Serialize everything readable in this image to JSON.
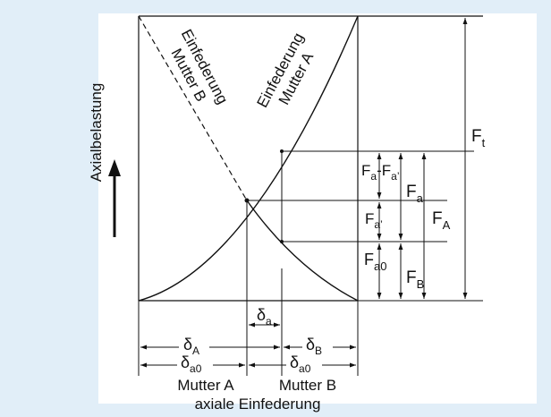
{
  "colors": {
    "background": "#e1eef8",
    "plot_area": "#ffffff",
    "ink": "#111111"
  },
  "y_axis_label": "Axialbelastung",
  "curves": {
    "nut_b_line1": "Einfederung",
    "nut_b_line2": "Mutter B",
    "nut_a_line1": "Einfederung",
    "nut_a_line2": "Mutter A"
  },
  "forces": {
    "Ft": {
      "base": "F",
      "sub": "t"
    },
    "Fa_minus": {
      "base1": "F",
      "sub1": "a",
      "dash": "-",
      "base2": "F",
      "sub2": "a’"
    },
    "Fa": {
      "base": "F",
      "sub": "a"
    },
    "Fa_prime": {
      "base": "F",
      "sub": "a’"
    },
    "FA": {
      "base": "F",
      "sub": "A"
    },
    "Fa0": {
      "base": "F",
      "sub": "a0"
    },
    "FB": {
      "base": "F",
      "sub": "B"
    }
  },
  "deflections": {
    "delta_a": {
      "base": "δ",
      "sub": "a"
    },
    "delta_A": {
      "base": "δ",
      "sub": "A"
    },
    "delta_B": {
      "base": "δ",
      "sub": "B"
    },
    "delta_a0_left": {
      "base": "δ",
      "sub": "a0"
    },
    "delta_a0_right": {
      "base": "δ",
      "sub": "a0"
    }
  },
  "bottom": {
    "mutter_a": "Mutter A",
    "mutter_b": "Mutter B",
    "axis_title": "axiale Einfederung"
  }
}
